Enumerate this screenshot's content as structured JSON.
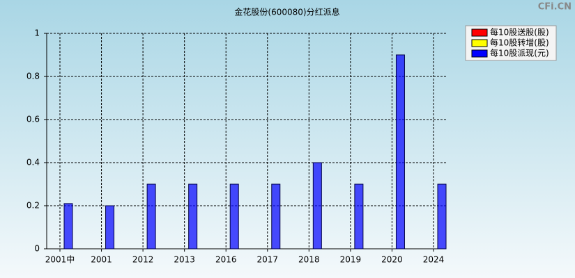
{
  "chart_data": {
    "type": "bar",
    "title": "金花股份(600080)分红派息",
    "watermark": "CFi.CN",
    "categories": [
      "2001中",
      "2001",
      "2012",
      "2013",
      "2016",
      "2017",
      "2018",
      "2019",
      "2020",
      "2024"
    ],
    "series": [
      {
        "name": "每10股送股(股)",
        "color": "#ff0000",
        "values": [
          0,
          0,
          0,
          0,
          0,
          0,
          0,
          0,
          0,
          0
        ]
      },
      {
        "name": "每10股转增(股)",
        "color": "#ffff00",
        "values": [
          0,
          0,
          0,
          0,
          0,
          0,
          0,
          0,
          0,
          0
        ]
      },
      {
        "name": "每10股派现(元)",
        "color": "#0000ff",
        "values": [
          0.21,
          0.2,
          0.3,
          0.3,
          0.3,
          0.3,
          0.4,
          0.3,
          0.9,
          0.3
        ]
      }
    ],
    "ylim": [
      0,
      1
    ],
    "yticks": [
      0,
      0.2,
      0.4,
      0.6,
      0.8,
      1
    ],
    "grid": true,
    "legend": "top-right"
  }
}
